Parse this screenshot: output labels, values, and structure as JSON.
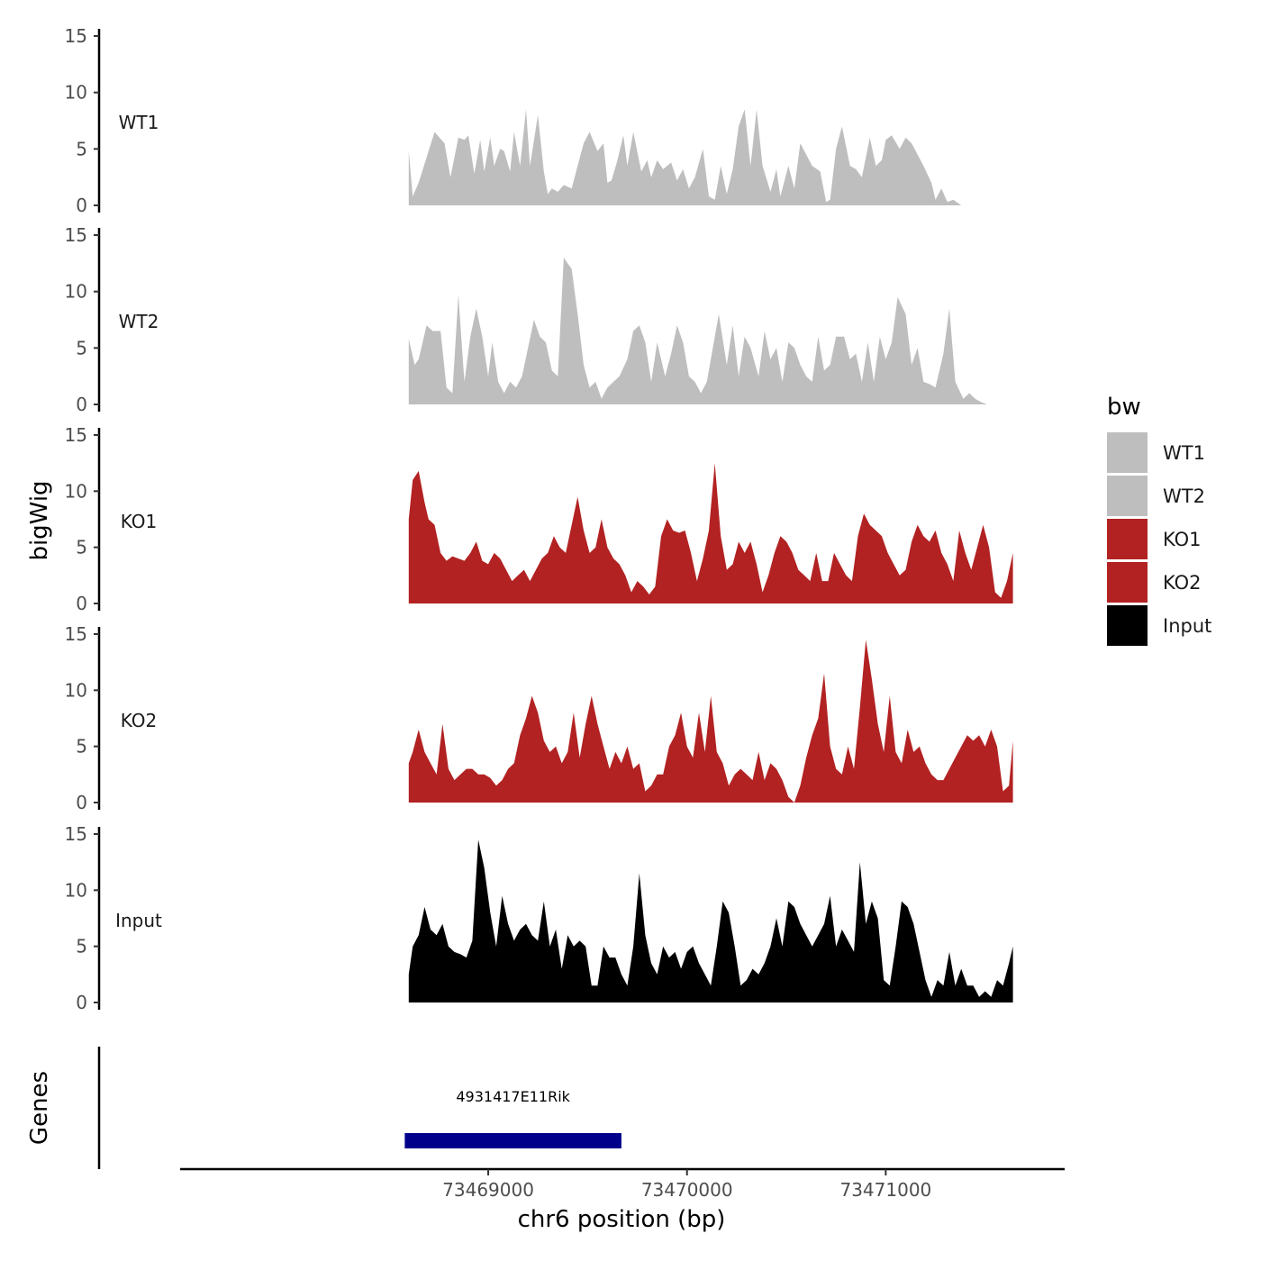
{
  "chart_data": {
    "type": "area",
    "ylabel": "bigWig",
    "xlabel": "chr6 position (bp)",
    "ylim": [
      0,
      15
    ],
    "y_ticks": [
      0,
      5,
      10,
      15
    ],
    "xlim": [
      73467450,
      73471900
    ],
    "x_ticks": [
      73469000,
      73470000,
      73471000
    ],
    "x_tick_labels": [
      "73469000",
      "73470000",
      "73471000"
    ],
    "colors": {
      "WT1": "#bebebe",
      "WT2": "#bebebe",
      "KO1": "#b22222",
      "KO2": "#b22222",
      "Input": "#000000"
    },
    "tracks": [
      {
        "name": "WT1",
        "x": [
          73468600,
          73468620,
          73468650,
          73468700,
          73468730,
          73468780,
          73468810,
          73468850,
          73468880,
          73468900,
          73468930,
          73468960,
          73468980,
          73469010,
          73469030,
          73469060,
          73469080,
          73469110,
          73469130,
          73469160,
          73469190,
          73469210,
          73469250,
          73469280,
          73469300,
          73469320,
          73469350,
          73469380,
          73469420,
          73469450,
          73469480,
          73469510,
          73469550,
          73469580,
          73469600,
          73469620,
          73469650,
          73469680,
          73469700,
          73469730,
          73469770,
          73469800,
          73469820,
          73469850,
          73469880,
          73469920,
          73469950,
          73469980,
          73470010,
          73470040,
          73470080,
          73470110,
          73470140,
          73470170,
          73470200,
          73470230,
          73470260,
          73470290,
          73470320,
          73470350,
          73470380,
          73470420,
          73470450,
          73470470,
          73470510,
          73470540,
          73470570,
          73470600,
          73470630,
          73470670,
          73470700,
          73470720,
          73470750,
          73470780,
          73470820,
          73470850,
          73470880,
          73470920,
          73470950,
          73470980,
          73471000,
          73471030,
          73471070,
          73471100,
          73471130,
          73471160,
          73471190,
          73471230,
          73471250,
          73471280,
          73471310,
          73471340,
          73471380,
          73471410,
          73471440,
          73471480,
          73471510,
          73471540,
          73471570,
          73471590,
          73471620,
          73471640
        ],
        "values": [
          4.8,
          0.8,
          2,
          4.8,
          6.5,
          5.5,
          2.5,
          6,
          5.8,
          6.2,
          2.8,
          5.8,
          3,
          6,
          3.5,
          5,
          4.8,
          3,
          6.5,
          3.5,
          8.5,
          3.5,
          8,
          3,
          1,
          1.5,
          1.2,
          1.8,
          1.5,
          3.5,
          5.5,
          6.5,
          4.8,
          5.5,
          2,
          2.2,
          4,
          6.2,
          3.5,
          6.5,
          3,
          4,
          2.5,
          4,
          3.2,
          3.8,
          2.2,
          3.2,
          1.5,
          2.5,
          5,
          0.8,
          0.5,
          3.5,
          1,
          3.2,
          7,
          8.5,
          3.5,
          8.5,
          3.5,
          1.2,
          3.2,
          0.8,
          3.5,
          1.5,
          5.5,
          4.5,
          3.5,
          3,
          0.3,
          0.5,
          5,
          7,
          3.5,
          3.2,
          2.5,
          6,
          3.5,
          4,
          5.8,
          6.2,
          5,
          6,
          5.5,
          4.5,
          3.5,
          2,
          0.5,
          1.5,
          0.3,
          0.5,
          0,
          0,
          0,
          0,
          0,
          0,
          0,
          0,
          0,
          0
        ]
      },
      {
        "name": "WT2",
        "x": [
          73468600,
          73468630,
          73468650,
          73468690,
          73468720,
          73468760,
          73468790,
          73468820,
          73468850,
          73468880,
          73468910,
          73468940,
          73468970,
          73469000,
          73469020,
          73469050,
          73469080,
          73469110,
          73469140,
          73469170,
          73469200,
          73469230,
          73469260,
          73469290,
          73469320,
          73469350,
          73469380,
          73469420,
          73469450,
          73469480,
          73469510,
          73469540,
          73469570,
          73469600,
          73469630,
          73469660,
          73469700,
          73469730,
          73469760,
          73469790,
          73469820,
          73469850,
          73469890,
          73469920,
          73469950,
          73469980,
          73470010,
          73470040,
          73470070,
          73470100,
          73470130,
          73470160,
          73470200,
          73470230,
          73470260,
          73470290,
          73470320,
          73470360,
          73470390,
          73470420,
          73470450,
          73470480,
          73470510,
          73470540,
          73470570,
          73470600,
          73470630,
          73470660,
          73470690,
          73470720,
          73470750,
          73470790,
          73470820,
          73470850,
          73470880,
          73470910,
          73470940,
          73470970,
          73471000,
          73471030,
          73471060,
          73471100,
          73471130,
          73471160,
          73471190,
          73471220,
          73471250,
          73471290,
          73471320,
          73471350,
          73471390,
          73471420,
          73471450,
          73471480,
          73471510,
          73471540,
          73471570,
          73471600,
          73471630,
          73471640
        ],
        "values": [
          5.8,
          3.5,
          4,
          7,
          6.5,
          6.5,
          1.5,
          1,
          9.7,
          2,
          6,
          8.5,
          6,
          2.5,
          5.5,
          2,
          1,
          2,
          1.5,
          2.5,
          5,
          7.5,
          6,
          5.5,
          3,
          2.5,
          13,
          12,
          8,
          3.5,
          1.5,
          2,
          0.5,
          1.5,
          2,
          2.5,
          4,
          6.5,
          7,
          5.5,
          2,
          5.5,
          2.5,
          4.5,
          7,
          5.5,
          2.5,
          2,
          1,
          2,
          5,
          8,
          3.5,
          7,
          2.5,
          6,
          5,
          2.5,
          6.5,
          4,
          5,
          2,
          5.5,
          5,
          3.5,
          2.5,
          2,
          6,
          3,
          3.5,
          6,
          6,
          4,
          4.5,
          2,
          5.5,
          2,
          6,
          4,
          5.5,
          9.5,
          8,
          3.5,
          5,
          2,
          1.8,
          1.5,
          4.5,
          8.5,
          2,
          0.5,
          1,
          0.5,
          0.2,
          0,
          0,
          0,
          0,
          0,
          0
        ]
      },
      {
        "name": "KO1",
        "x": [
          73468600,
          73468620,
          73468650,
          73468680,
          73468700,
          73468730,
          73468760,
          73468790,
          73468820,
          73468850,
          73468880,
          73468910,
          73468940,
          73468970,
          73469000,
          73469030,
          73469060,
          73469090,
          73469120,
          73469150,
          73469180,
          73469210,
          73469240,
          73469270,
          73469300,
          73469330,
          73469360,
          73469390,
          73469420,
          73469450,
          73469480,
          73469510,
          73469540,
          73469570,
          73469600,
          73469630,
          73469660,
          73469690,
          73469720,
          73469750,
          73469780,
          73469810,
          73469840,
          73469870,
          73469900,
          73469930,
          73469960,
          73469990,
          73470020,
          73470050,
          73470080,
          73470110,
          73470140,
          73470170,
          73470200,
          73470230,
          73470260,
          73470290,
          73470320,
          73470350,
          73470380,
          73470410,
          73470440,
          73470470,
          73470500,
          73470530,
          73470560,
          73470590,
          73470620,
          73470650,
          73470680,
          73470710,
          73470740,
          73470770,
          73470800,
          73470830,
          73470860,
          73470890,
          73470920,
          73470950,
          73470980,
          73471010,
          73471040,
          73471070,
          73471100,
          73471130,
          73471160,
          73471190,
          73471220,
          73471250,
          73471280,
          73471310,
          73471340,
          73471370,
          73471400,
          73471430,
          73471460,
          73471490,
          73471520,
          73471550,
          73471580,
          73471610,
          73471640
        ],
        "values": [
          7.5,
          11,
          11.8,
          9,
          7.5,
          7,
          4.5,
          3.8,
          4.2,
          4,
          3.8,
          4.5,
          5.5,
          3.8,
          3.5,
          4.5,
          4,
          3,
          2,
          2.5,
          3,
          2,
          3,
          4,
          4.5,
          6,
          5,
          4.5,
          7,
          9.5,
          6.5,
          4.5,
          5,
          7.5,
          5,
          4,
          3.5,
          2.5,
          1,
          2,
          1.5,
          0.8,
          1.5,
          6,
          7.5,
          6.5,
          6.3,
          6.5,
          4.5,
          2,
          4,
          6.5,
          12.5,
          6,
          3,
          3.5,
          5.5,
          4.5,
          5.5,
          3.5,
          1,
          2.5,
          4.5,
          6,
          5.5,
          4.5,
          3,
          2.5,
          2,
          4.5,
          2,
          2,
          4.5,
          3.5,
          2.5,
          2,
          6,
          8,
          7,
          6.5,
          6,
          4.5,
          3.5,
          2.5,
          3,
          5.5,
          7,
          6,
          5.5,
          6.5,
          4.5,
          3.5,
          2,
          6.5,
          4.5,
          3,
          5,
          7,
          5,
          1,
          0.5,
          2,
          4.5
        ]
      },
      {
        "name": "KO2",
        "x": [
          73468600,
          73468620,
          73468650,
          73468680,
          73468710,
          73468740,
          73468770,
          73468800,
          73468830,
          73468860,
          73468890,
          73468920,
          73468950,
          73468980,
          73469010,
          73469040,
          73469070,
          73469100,
          73469130,
          73469160,
          73469190,
          73469220,
          73469250,
          73469280,
          73469310,
          73469340,
          73469370,
          73469400,
          73469430,
          73469460,
          73469490,
          73469520,
          73469550,
          73469580,
          73469610,
          73469640,
          73469670,
          73469700,
          73469730,
          73469760,
          73469790,
          73469820,
          73469850,
          73469880,
          73469910,
          73469940,
          73469970,
          73470000,
          73470030,
          73470060,
          73470090,
          73470120,
          73470150,
          73470180,
          73470210,
          73470240,
          73470270,
          73470300,
          73470330,
          73470360,
          73470390,
          73470420,
          73470450,
          73470480,
          73470510,
          73470540,
          73470570,
          73470600,
          73470630,
          73470660,
          73470690,
          73470720,
          73470750,
          73470780,
          73470810,
          73470840,
          73470870,
          73470900,
          73470930,
          73470960,
          73470990,
          73471020,
          73471050,
          73471080,
          73471110,
          73471140,
          73471170,
          73471200,
          73471230,
          73471260,
          73471290,
          73471320,
          73471350,
          73471380,
          73471410,
          73471440,
          73471470,
          73471500,
          73471530,
          73471560,
          73471590,
          73471620,
          73471640
        ],
        "values": [
          3.5,
          4.5,
          6.5,
          4.5,
          3.5,
          2.5,
          7,
          3,
          2,
          2.5,
          3,
          3,
          2.5,
          2.5,
          2.2,
          1.5,
          2,
          3,
          3.5,
          6,
          7.5,
          9.5,
          8,
          5.5,
          4.5,
          5,
          3.5,
          4.5,
          8,
          4,
          7,
          9.5,
          7,
          5,
          3,
          4.5,
          3.5,
          5,
          3,
          3.5,
          1,
          1.5,
          2.5,
          2.5,
          5,
          6,
          8,
          5,
          4,
          8,
          4.5,
          9.5,
          4.5,
          3.5,
          1.5,
          2.5,
          3,
          2.5,
          2,
          4.5,
          2,
          3.5,
          3,
          2,
          0.5,
          0,
          1.5,
          4,
          6,
          7.5,
          11.5,
          5,
          3,
          2.5,
          5,
          3,
          8.5,
          14.5,
          11,
          7,
          4.5,
          9.5,
          4.5,
          3.5,
          6.5,
          4.5,
          5,
          3.5,
          2.5,
          2,
          2,
          3,
          4,
          5,
          6,
          5.5,
          6,
          5,
          6.5,
          5,
          1,
          1.5,
          5.5
        ]
      },
      {
        "name": "Input",
        "x": [
          73468600,
          73468620,
          73468650,
          73468680,
          73468710,
          73468740,
          73468770,
          73468800,
          73468830,
          73468860,
          73468890,
          73468920,
          73468950,
          73468980,
          73469010,
          73469040,
          73469070,
          73469100,
          73469130,
          73469160,
          73469190,
          73469220,
          73469250,
          73469280,
          73469310,
          73469340,
          73469370,
          73469400,
          73469430,
          73469460,
          73469490,
          73469520,
          73469550,
          73469580,
          73469610,
          73469640,
          73469670,
          73469700,
          73469730,
          73469760,
          73469790,
          73469820,
          73469850,
          73469880,
          73469910,
          73469940,
          73469970,
          73470000,
          73470030,
          73470060,
          73470090,
          73470120,
          73470150,
          73470180,
          73470210,
          73470240,
          73470270,
          73470300,
          73470330,
          73470360,
          73470390,
          73470420,
          73470450,
          73470480,
          73470510,
          73470540,
          73470570,
          73470600,
          73470630,
          73470660,
          73470690,
          73470720,
          73470750,
          73470780,
          73470810,
          73470840,
          73470870,
          73470900,
          73470930,
          73470960,
          73470990,
          73471020,
          73471050,
          73471080,
          73471110,
          73471140,
          73471170,
          73471200,
          73471230,
          73471260,
          73471290,
          73471320,
          73471350,
          73471380,
          73471410,
          73471440,
          73471470,
          73471500,
          73471530,
          73471560,
          73471590,
          73471620,
          73471640
        ],
        "values": [
          2.5,
          5,
          6,
          8.5,
          6.5,
          6,
          7,
          5,
          4.5,
          4.3,
          4,
          5.5,
          14.5,
          12,
          8,
          5,
          9.5,
          7,
          5.5,
          6.5,
          7,
          6,
          5.5,
          9,
          5,
          6.5,
          3,
          6,
          5,
          5.5,
          5,
          1.5,
          1.5,
          5,
          4,
          4,
          2.5,
          1.5,
          5,
          11.5,
          6,
          3.5,
          2.5,
          5,
          4,
          4.5,
          3,
          4.5,
          5,
          3.5,
          2.5,
          1.5,
          5,
          9,
          8,
          5,
          1.5,
          2,
          3,
          2.5,
          3.5,
          5,
          7.5,
          5,
          9,
          8.5,
          7,
          6,
          5,
          6,
          7,
          9.5,
          5,
          6.5,
          5.5,
          4.5,
          12.5,
          7,
          9,
          7.5,
          2,
          1.5,
          5,
          9,
          8.5,
          7,
          4.5,
          2,
          0.5,
          2,
          1.5,
          4.5,
          1.5,
          3,
          1.5,
          1.5,
          0.5,
          1,
          0.5,
          2,
          1.5,
          3.5,
          5
        ]
      }
    ],
    "legend": {
      "title": "bw",
      "position": "right",
      "entries": [
        {
          "label": "WT1",
          "color": "#bebebe"
        },
        {
          "label": "WT2",
          "color": "#bebebe"
        },
        {
          "label": "KO1",
          "color": "#b22222"
        },
        {
          "label": "KO2",
          "color": "#b22222"
        },
        {
          "label": "Input",
          "color": "#000000"
        }
      ]
    },
    "genes_panel": {
      "title": "Genes",
      "genes": [
        {
          "name": "4931417E11Rik",
          "start": 73468580,
          "end": 73469670,
          "color": "#00008b"
        }
      ]
    }
  }
}
